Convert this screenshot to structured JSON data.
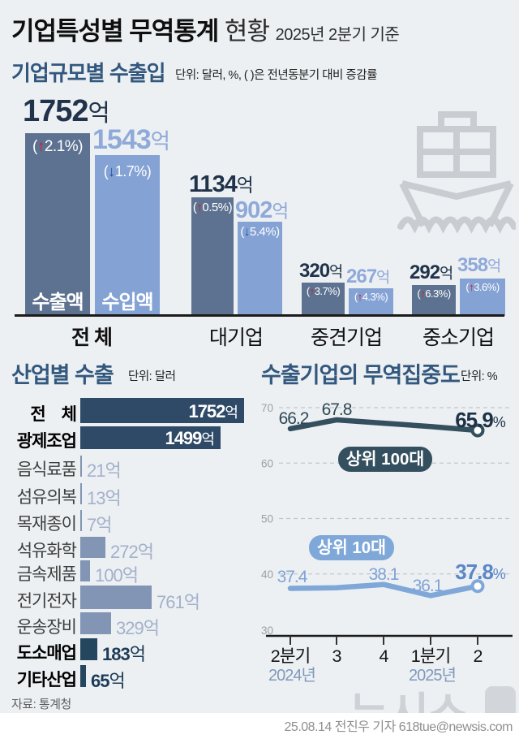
{
  "header": {
    "title_main": "기업특성별 무역통계",
    "title_sub": "현황",
    "title_period": "2025년 2분기 기준"
  },
  "sections": {
    "size": {
      "title": "기업규모별 수출입",
      "unit": "단위: 달러, %, ( )은 전년동분기 대비 증감률"
    },
    "industry": {
      "title": "산업별 수출",
      "unit": "단위: 달러",
      "source": "자료: 통계청"
    },
    "concentration": {
      "title": "수출기업의 무역집중도",
      "unit": "단위:  %"
    }
  },
  "footer": {
    "credit": "25.08.14 전진우 기자 618tue@newsis.com",
    "watermark": "뉴시스"
  },
  "colors": {
    "export_bar": "#5d7290",
    "import_bar": "#84a2d4",
    "navy_bar": "#2e4a67",
    "mid_bar": "#8295b4",
    "bold_bar": "#24465f",
    "line_dark": "#34505f",
    "line_light": "#7fa8d9",
    "up": "#e8111c",
    "down": "#1e4f9c",
    "title_navy": "#33587e",
    "export_text": "#20334a",
    "import_text": "#8fa9d9"
  },
  "chart_data": [
    {
      "type": "bar",
      "title": "기업규모별 수출입",
      "unit": "달러, %",
      "categories": [
        "전 체",
        "대기업",
        "중견기업",
        "중소기업"
      ],
      "series": [
        {
          "name": "수출액",
          "values": [
            1752,
            1134,
            320,
            292
          ],
          "changes": [
            {
              "dir": "up",
              "pct": "2.1%"
            },
            {
              "dir": "up",
              "pct": "0.5%"
            },
            {
              "dir": "up",
              "pct": "3.7%"
            },
            {
              "dir": "up",
              "pct": "6.3%"
            }
          ]
        },
        {
          "name": "수입액",
          "values": [
            1543,
            902,
            267,
            358
          ],
          "changes": [
            {
              "dir": "down",
              "pct": "1.7%"
            },
            {
              "dir": "down",
              "pct": "5.4%"
            },
            {
              "dir": "up",
              "pct": "4.3%"
            },
            {
              "dir": "up",
              "pct": "3.6%"
            }
          ]
        }
      ],
      "value_suffix": "억"
    },
    {
      "type": "bar",
      "orientation": "horizontal",
      "title": "산업별 수출",
      "unit": "달러",
      "categories": [
        "전　체",
        "광제조업",
        "음식료품",
        "섬유의복",
        "목재종이",
        "석유화학",
        "금속제품",
        "전기전자",
        "운송장비",
        "도소매업",
        "기타산업"
      ],
      "values": [
        1752,
        1499,
        21,
        13,
        7,
        272,
        100,
        761,
        329,
        183,
        65
      ],
      "styles": [
        "total",
        "total",
        "small",
        "small",
        "small",
        "small",
        "small",
        "small",
        "small",
        "bold",
        "bold"
      ],
      "value_suffix": "억"
    },
    {
      "type": "line",
      "title": "수출기업의 무역집중도",
      "unit": "%",
      "x": [
        "2분기",
        "3",
        "4",
        "1분기",
        "2"
      ],
      "x_groups": [
        {
          "label": "2024년",
          "at": 0
        },
        {
          "label": "2025년",
          "at": 3
        }
      ],
      "ylim": [
        30,
        72
      ],
      "yticks": [
        70,
        60,
        50,
        40,
        30
      ],
      "grid": "dashed",
      "legend_position": "badges-on-chart",
      "series": [
        {
          "name": "상위 100대",
          "values": [
            66.2,
            67.8,
            67.2,
            66.6,
            65.9
          ],
          "point_labels": [
            "66.2",
            "67.8",
            "",
            "",
            "65.9%"
          ],
          "estimated": [
            false,
            false,
            true,
            true,
            false
          ]
        },
        {
          "name": "상위 10대",
          "values": [
            37.4,
            37.5,
            38.1,
            36.1,
            37.8
          ],
          "point_labels": [
            "37.4",
            "",
            "38.1",
            "36.1",
            "37.8%"
          ],
          "estimated": [
            false,
            true,
            false,
            false,
            false
          ]
        }
      ]
    }
  ]
}
